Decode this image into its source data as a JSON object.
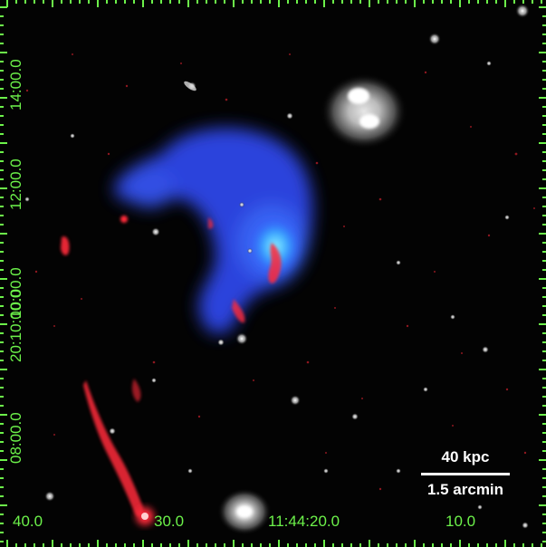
{
  "image": {
    "y_axis_labels": [
      "14:00.0",
      "12:00.0",
      "10:00.0",
      "20:10:00.0",
      "08:00.0"
    ],
    "x_axis_labels": [
      "40.0",
      "30.0",
      "11:44:20.0",
      "10.0"
    ],
    "scale_bar": {
      "physical": "40 kpc",
      "angular": "1.5 arcmin"
    },
    "colors": {
      "background": "#030303",
      "axis_ticks": "#6cf24a",
      "xray_emission": "#2f4cff",
      "radio_emission": "#ff2a3a",
      "optical_sources": "#ffffff"
    }
  }
}
